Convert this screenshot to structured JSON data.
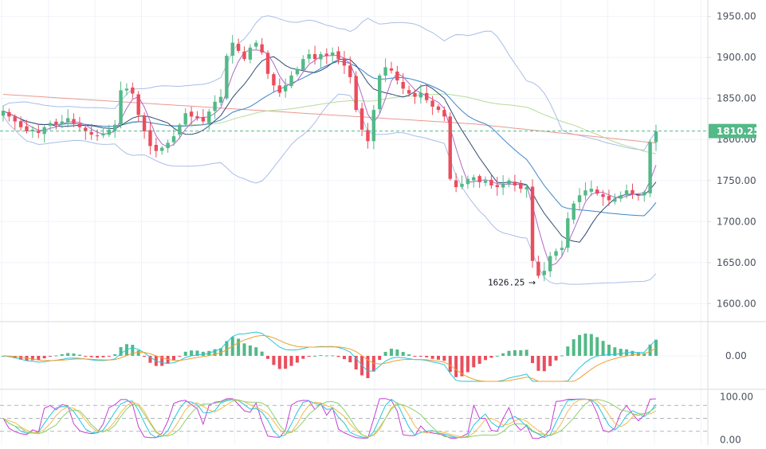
{
  "colors": {
    "up": "#53b987",
    "down": "#eb4d5c",
    "grid": "#f0f3fa",
    "axis_border": "#d6dcde",
    "axis_text": "#4c525e",
    "price_line": "#53b987",
    "bb_upper_lower": "#a9bde8",
    "ma_red": "#e8998f",
    "ma_green": "#b5dc9a",
    "ma_blue": "#3d85c6",
    "ma_navy": "#2e4a73",
    "ma_purple": "#b069c9",
    "macd_fast": "#26c6da",
    "macd_slow": "#f0a030",
    "stoch_k": "#c73ed6",
    "stoch_d": "#f5b94d",
    "stoch_e": "#26c6da",
    "stoch_f": "#8bd16c"
  },
  "chart_data": [
    {
      "type": "candlestick",
      "panel": "price",
      "y_ticks": [
        "1950.00",
        "1900.00",
        "1850.00",
        "1800.00",
        "1750.00",
        "1700.00",
        "1650.00",
        "1600.00"
      ],
      "ylim": [
        1580,
        1970
      ],
      "last_price": 1810.25,
      "last_price_label": "1810.25",
      "min_marker": {
        "value": 1626.25,
        "label": "1626.25"
      },
      "close": [
        1835,
        1828,
        1822,
        1815,
        1810,
        1812,
        1808,
        1815,
        1820,
        1818,
        1822,
        1826,
        1820,
        1815,
        1810,
        1806,
        1804,
        1807,
        1812,
        1818,
        1860,
        1862,
        1856,
        1830,
        1810,
        1792,
        1786,
        1790,
        1796,
        1804,
        1818,
        1832,
        1828,
        1826,
        1822,
        1834,
        1846,
        1852,
        1902,
        1918,
        1908,
        1898,
        1912,
        1918,
        1906,
        1880,
        1866,
        1857,
        1866,
        1878,
        1886,
        1898,
        1904,
        1898,
        1904,
        1902,
        1906,
        1898,
        1890,
        1876,
        1836,
        1812,
        1798,
        1836,
        1878,
        1888,
        1884,
        1872,
        1862,
        1856,
        1852,
        1857,
        1848,
        1840,
        1836,
        1828,
        1752,
        1742,
        1746,
        1752,
        1754,
        1748,
        1750,
        1744,
        1742,
        1746,
        1750,
        1744,
        1740,
        1742,
        1652,
        1634,
        1640,
        1658,
        1664,
        1668,
        1704,
        1722,
        1732,
        1738,
        1740,
        1734,
        1730,
        1726,
        1728,
        1732,
        1738,
        1734,
        1732,
        1736,
        1797,
        1810
      ],
      "open_offset_days_note": "",
      "series": [
        {
          "name": "",
          "role": "bollinger_upper"
        },
        {
          "name": "",
          "role": "bollinger_lower"
        },
        {
          "name": "",
          "role": "moving_average_long"
        },
        {
          "name": "",
          "role": "moving_average_mid"
        },
        {
          "name": "",
          "role": "moving_average_fast"
        }
      ],
      "grid": true
    },
    {
      "type": "histogram",
      "panel": "macd",
      "y_ticks": [
        "0.00"
      ],
      "ylim": [
        -20,
        20
      ],
      "grid": true
    },
    {
      "type": "line",
      "panel": "stochastic",
      "y_ticks": [
        "100.00",
        "0.00"
      ],
      "ylim": [
        -12,
        112
      ],
      "grid": true
    }
  ]
}
